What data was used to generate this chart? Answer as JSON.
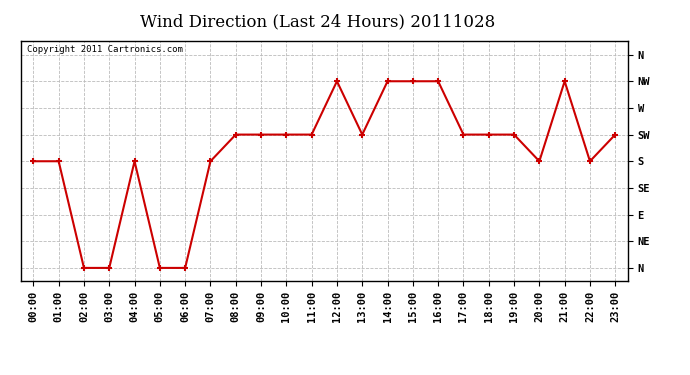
{
  "title": "Wind Direction (Last 24 Hours) 20111028",
  "copyright_text": "Copyright 2011 Cartronics.com",
  "x_labels": [
    "00:00",
    "01:00",
    "02:00",
    "03:00",
    "04:00",
    "05:00",
    "06:00",
    "07:00",
    "08:00",
    "09:00",
    "10:00",
    "11:00",
    "12:00",
    "13:00",
    "14:00",
    "15:00",
    "16:00",
    "17:00",
    "18:00",
    "19:00",
    "20:00",
    "21:00",
    "22:00",
    "23:00"
  ],
  "y_labels": [
    "N",
    "NE",
    "E",
    "SE",
    "S",
    "SW",
    "W",
    "NW",
    "N"
  ],
  "y_values": [
    0,
    1,
    2,
    3,
    4,
    5,
    6,
    7,
    8
  ],
  "hours": [
    0,
    1,
    2,
    3,
    4,
    5,
    6,
    7,
    8,
    9,
    10,
    11,
    12,
    13,
    14,
    15,
    16,
    17,
    18,
    19,
    20,
    21,
    22,
    23
  ],
  "wind_data": [
    4,
    4,
    0,
    0,
    4,
    0,
    0,
    4,
    5,
    5,
    5,
    5,
    7,
    5,
    7,
    7,
    7,
    5,
    5,
    5,
    4,
    7,
    4,
    5
  ],
  "line_color": "#cc0000",
  "marker": "+",
  "background_color": "#ffffff",
  "plot_bg_color": "#ffffff",
  "grid_color": "#bbbbbb",
  "title_fontsize": 12,
  "tick_fontsize": 7.5,
  "copyright_fontsize": 6.5
}
